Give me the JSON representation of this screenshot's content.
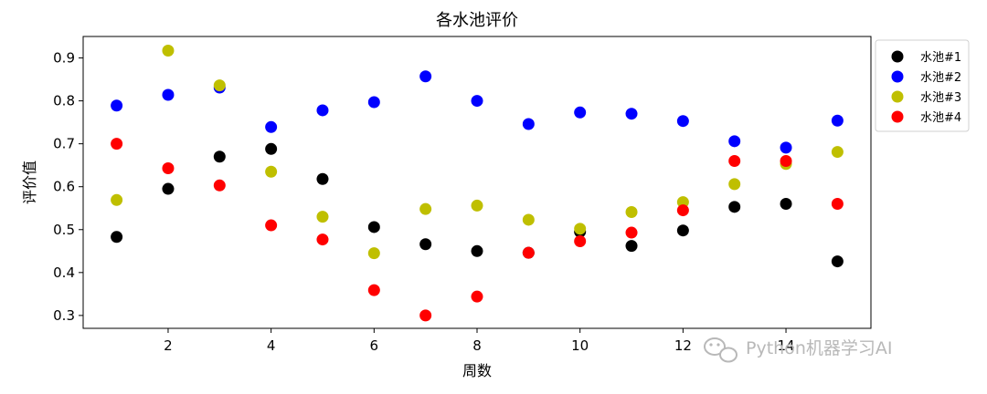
{
  "chart_data": {
    "type": "scatter",
    "title": "各水池评价",
    "xlabel": "周数",
    "ylabel": "评价值",
    "xlim": [
      0.35,
      15.65
    ],
    "ylim": [
      0.27,
      0.95
    ],
    "xticks": [
      2,
      4,
      6,
      8,
      10,
      12,
      14
    ],
    "yticks": [
      0.3,
      0.4,
      0.5,
      0.6,
      0.7,
      0.8,
      0.9
    ],
    "grid": false,
    "legend_position": "outside-right-top",
    "x": [
      1,
      2,
      3,
      4,
      5,
      6,
      7,
      8,
      9,
      10,
      11,
      12,
      13,
      14,
      15
    ],
    "series": [
      {
        "name": "水池#1",
        "color": "#000000",
        "values": [
          0.483,
          0.595,
          0.67,
          0.688,
          0.618,
          0.506,
          0.466,
          0.45,
          0.446,
          0.495,
          0.462,
          0.498,
          0.553,
          0.56,
          0.426
        ]
      },
      {
        "name": "水池#2",
        "color": "#0000ff",
        "values": [
          0.789,
          0.814,
          0.831,
          0.739,
          0.778,
          0.797,
          0.857,
          0.8,
          0.746,
          0.773,
          0.77,
          0.753,
          0.706,
          0.691,
          0.754
        ]
      },
      {
        "name": "水池#3",
        "color": "#bfbf00",
        "values": [
          0.569,
          0.917,
          0.836,
          0.635,
          0.53,
          0.445,
          0.548,
          0.556,
          0.523,
          0.502,
          0.541,
          0.564,
          0.606,
          0.653,
          0.681
        ]
      },
      {
        "name": "水池#4",
        "color": "#ff0000",
        "values": [
          0.7,
          0.643,
          0.603,
          0.51,
          0.477,
          0.359,
          0.3,
          0.344,
          0.446,
          0.473,
          0.493,
          0.545,
          0.66,
          0.66,
          0.56
        ]
      }
    ]
  },
  "watermark": {
    "text": "Python机器学习AI",
    "icon": "wechat-icon"
  }
}
